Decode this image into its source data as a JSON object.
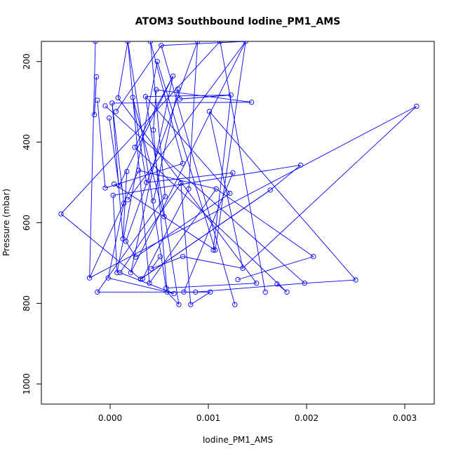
{
  "chart_data": {
    "type": "line",
    "title": "ATOM3 Southbound Iodine_PM1_AMS",
    "xlabel": "Iodine_PM1_AMS",
    "ylabel": "Pressure (mbar)",
    "xlim": [
      -0.0007,
      0.0033
    ],
    "ylim": [
      1050,
      150
    ],
    "y_reversed": true,
    "x_ticks": [
      0.0,
      0.001,
      0.002,
      0.003
    ],
    "x_tick_labels": [
      "0.000",
      "0.001",
      "0.002",
      "0.003"
    ],
    "y_ticks": [
      200,
      400,
      600,
      800,
      1000
    ],
    "y_tick_labels": [
      "200",
      "400",
      "600",
      "800",
      "1000"
    ],
    "grid": false,
    "marker": "open-circle",
    "series": [
      {
        "color": "#0000ff",
        "points": [
          {
            "x": -0.00015,
            "y": 150
          },
          {
            "x": -0.00014,
            "y": 238
          },
          {
            "x": -0.00013,
            "y": 296
          },
          {
            "x": -0.00016,
            "y": 332
          },
          {
            "x": -5e-05,
            "y": 310
          },
          {
            "x": 2e-05,
            "y": 303
          },
          {
            "x": 8e-05,
            "y": 290
          },
          {
            "x": -1e-05,
            "y": 340
          },
          {
            "x": 6e-05,
            "y": 324
          },
          {
            "x": 0.00018,
            "y": 150
          },
          {
            "x": 0.00023,
            "y": 289
          },
          {
            "x": 0.00036,
            "y": 287
          },
          {
            "x": 0.00041,
            "y": 150
          },
          {
            "x": 0.00047,
            "y": 270
          },
          {
            "x": 0.00052,
            "y": 160
          },
          {
            "x": 0.00048,
            "y": 200
          },
          {
            "x": 0.00064,
            "y": 236
          },
          {
            "x": 0.00069,
            "y": 268
          },
          {
            "x": 0.00071,
            "y": 293
          },
          {
            "x": 0.00089,
            "y": 150
          },
          {
            "x": 0.00101,
            "y": 324
          },
          {
            "x": 0.00112,
            "y": 150
          },
          {
            "x": 0.00123,
            "y": 283
          },
          {
            "x": 0.00144,
            "y": 301
          },
          {
            "x": 0.00138,
            "y": 150
          },
          {
            "x": 0.00312,
            "y": 311
          },
          {
            "x": 0.00025,
            "y": 413
          },
          {
            "x": 0.00044,
            "y": 370
          },
          {
            "x": 0.00029,
            "y": 470
          },
          {
            "x": 0.00017,
            "y": 473
          },
          {
            "x": 0.00037,
            "y": 500
          },
          {
            "x": -5e-05,
            "y": 514
          },
          {
            "x": 4e-05,
            "y": 504
          },
          {
            "x": 9e-05,
            "y": 508
          },
          {
            "x": 3e-05,
            "y": 532
          },
          {
            "x": 0.00018,
            "y": 543
          },
          {
            "x": 0.00014,
            "y": 552
          },
          {
            "x": 0.00072,
            "y": 502
          },
          {
            "x": 0.0008,
            "y": 516
          },
          {
            "x": 0.00074,
            "y": 453
          },
          {
            "x": 0.00125,
            "y": 476
          },
          {
            "x": 0.00194,
            "y": 457
          },
          {
            "x": 0.00163,
            "y": 519
          },
          {
            "x": 0.00108,
            "y": 516
          },
          {
            "x": 0.00122,
            "y": 527
          },
          {
            "x": 0.00056,
            "y": 535
          },
          {
            "x": 0.00044,
            "y": 546
          },
          {
            "x": -0.0005,
            "y": 578
          },
          {
            "x": 0.00055,
            "y": 585
          },
          {
            "x": 0.00013,
            "y": 640
          },
          {
            "x": 0.00016,
            "y": 646
          },
          {
            "x": 0.00105,
            "y": 668
          },
          {
            "x": 0.00107,
            "y": 668
          },
          {
            "x": 0.00207,
            "y": 684
          },
          {
            "x": 0.00026,
            "y": 685
          },
          {
            "x": 0.00051,
            "y": 684
          },
          {
            "x": 0.00074,
            "y": 684
          },
          {
            "x": -0.00021,
            "y": 737
          },
          {
            "x": -2e-05,
            "y": 737
          },
          {
            "x": 7e-05,
            "y": 724
          },
          {
            "x": 0.0001,
            "y": 724
          },
          {
            "x": 0.00021,
            "y": 724
          },
          {
            "x": 0.00031,
            "y": 740
          },
          {
            "x": 0.00033,
            "y": 739
          },
          {
            "x": 0.00042,
            "y": 714
          },
          {
            "x": 0.00135,
            "y": 713
          },
          {
            "x": 0.0013,
            "y": 741
          },
          {
            "x": 0.0025,
            "y": 742
          },
          {
            "x": 0.00149,
            "y": 750
          },
          {
            "x": 0.0017,
            "y": 752
          },
          {
            "x": 0.00198,
            "y": 750
          },
          {
            "x": 0.0004,
            "y": 750
          },
          {
            "x": 0.00057,
            "y": 762
          },
          {
            "x": -0.00013,
            "y": 772
          },
          {
            "x": 0.00058,
            "y": 772
          },
          {
            "x": 0.00065,
            "y": 776
          },
          {
            "x": 0.00075,
            "y": 772
          },
          {
            "x": 0.00087,
            "y": 772
          },
          {
            "x": 0.00102,
            "y": 772
          },
          {
            "x": 0.00158,
            "y": 772
          },
          {
            "x": 0.0018,
            "y": 772
          },
          {
            "x": 0.0007,
            "y": 803
          },
          {
            "x": 0.00082,
            "y": 803
          },
          {
            "x": 0.00127,
            "y": 803
          }
        ],
        "connections": [
          [
            0,
            57
          ],
          [
            1,
            3
          ],
          [
            2,
            31
          ],
          [
            3,
            1
          ],
          [
            4,
            70
          ],
          [
            5,
            23
          ],
          [
            6,
            9
          ],
          [
            7,
            33
          ],
          [
            8,
            14
          ],
          [
            9,
            72
          ],
          [
            10,
            30
          ],
          [
            11,
            22
          ],
          [
            12,
            45
          ],
          [
            13,
            27
          ],
          [
            14,
            24
          ],
          [
            15,
            59
          ],
          [
            16,
            61
          ],
          [
            17,
            18
          ],
          [
            18,
            22
          ],
          [
            19,
            50
          ],
          [
            20,
            65
          ],
          [
            21,
            47
          ],
          [
            22,
            18
          ],
          [
            23,
            13
          ],
          [
            24,
            52
          ],
          [
            25,
            57
          ],
          [
            26,
            16
          ],
          [
            27,
            74
          ],
          [
            28,
            43
          ],
          [
            29,
            49
          ],
          [
            30,
            40
          ],
          [
            31,
            39
          ],
          [
            32,
            52
          ],
          [
            33,
            16
          ],
          [
            34,
            41
          ],
          [
            35,
            24
          ],
          [
            36,
            5
          ],
          [
            37,
            60
          ],
          [
            38,
            19
          ],
          [
            39,
            12
          ],
          [
            40,
            76
          ],
          [
            41,
            42
          ],
          [
            42,
            62
          ],
          [
            43,
            71
          ],
          [
            44,
            11
          ],
          [
            45,
            73
          ],
          [
            46,
            17
          ],
          [
            47,
            62
          ],
          [
            48,
            10
          ],
          [
            49,
            5
          ],
          [
            50,
            54
          ],
          [
            51,
            22
          ],
          [
            52,
            15
          ],
          [
            53,
            43
          ],
          [
            54,
            44
          ],
          [
            55,
            64
          ],
          [
            56,
            65
          ],
          [
            57,
            28
          ],
          [
            58,
            36
          ],
          [
            59,
            34
          ],
          [
            60,
            75
          ],
          [
            61,
            24
          ],
          [
            62,
            42
          ],
          [
            63,
            38
          ],
          [
            64,
            56
          ],
          [
            65,
            25
          ],
          [
            66,
            53
          ],
          [
            67,
            20
          ],
          [
            68,
            6
          ],
          [
            69,
            80
          ],
          [
            70,
            67
          ],
          [
            71,
            9
          ],
          [
            72,
            68
          ],
          [
            73,
            77
          ],
          [
            74,
            81
          ],
          [
            75,
            58
          ],
          [
            76,
            78
          ],
          [
            77,
            70
          ],
          [
            78,
            82
          ],
          [
            79,
            21
          ],
          [
            80,
            26
          ],
          [
            81,
            11
          ],
          [
            82,
            37
          ],
          [
            83,
            14
          ]
        ]
      }
    ]
  }
}
